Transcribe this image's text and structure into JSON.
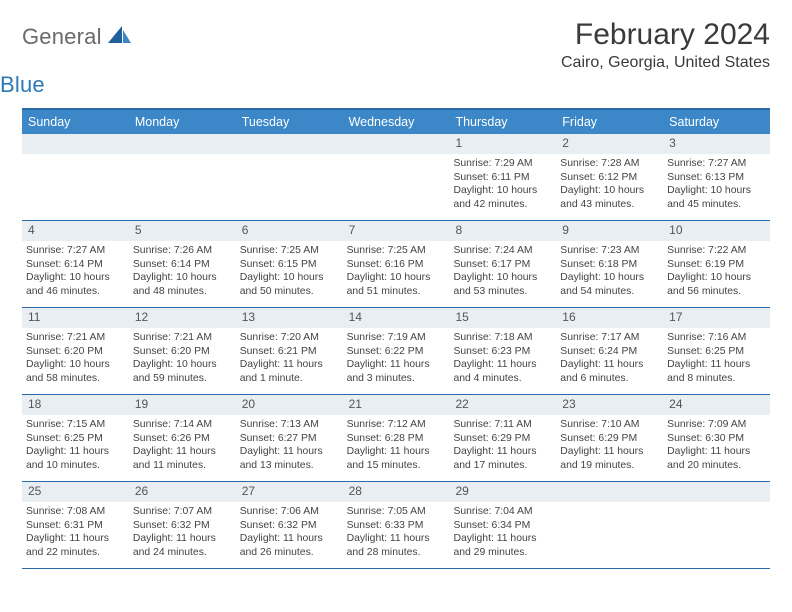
{
  "logo": {
    "word1": "General",
    "word2": "Blue"
  },
  "header": {
    "title": "February 2024",
    "subtitle": "Cairo, Georgia, United States"
  },
  "dayNames": [
    "Sunday",
    "Monday",
    "Tuesday",
    "Wednesday",
    "Thursday",
    "Friday",
    "Saturday"
  ],
  "colors": {
    "headerBar": "#3b87c8",
    "topBorder": "#2a6aa8",
    "dayNumBg": "#e9eef2",
    "text": "#444444",
    "titleText": "#3a3a3a",
    "logoGray": "#6a6a6a",
    "logoBlue": "#2a7ab8"
  },
  "fonts": {
    "title_pt": 30,
    "subtitle_pt": 16,
    "dayheader_pt": 12.5,
    "daynum_pt": 12,
    "body_pt": 10.4
  },
  "weeks": [
    [
      null,
      null,
      null,
      null,
      {
        "num": "1",
        "sunrise": "7:29 AM",
        "sunset": "6:11 PM",
        "daylight": "10 hours and 42 minutes."
      },
      {
        "num": "2",
        "sunrise": "7:28 AM",
        "sunset": "6:12 PM",
        "daylight": "10 hours and 43 minutes."
      },
      {
        "num": "3",
        "sunrise": "7:27 AM",
        "sunset": "6:13 PM",
        "daylight": "10 hours and 45 minutes."
      }
    ],
    [
      {
        "num": "4",
        "sunrise": "7:27 AM",
        "sunset": "6:14 PM",
        "daylight": "10 hours and 46 minutes."
      },
      {
        "num": "5",
        "sunrise": "7:26 AM",
        "sunset": "6:14 PM",
        "daylight": "10 hours and 48 minutes."
      },
      {
        "num": "6",
        "sunrise": "7:25 AM",
        "sunset": "6:15 PM",
        "daylight": "10 hours and 50 minutes."
      },
      {
        "num": "7",
        "sunrise": "7:25 AM",
        "sunset": "6:16 PM",
        "daylight": "10 hours and 51 minutes."
      },
      {
        "num": "8",
        "sunrise": "7:24 AM",
        "sunset": "6:17 PM",
        "daylight": "10 hours and 53 minutes."
      },
      {
        "num": "9",
        "sunrise": "7:23 AM",
        "sunset": "6:18 PM",
        "daylight": "10 hours and 54 minutes."
      },
      {
        "num": "10",
        "sunrise": "7:22 AM",
        "sunset": "6:19 PM",
        "daylight": "10 hours and 56 minutes."
      }
    ],
    [
      {
        "num": "11",
        "sunrise": "7:21 AM",
        "sunset": "6:20 PM",
        "daylight": "10 hours and 58 minutes."
      },
      {
        "num": "12",
        "sunrise": "7:21 AM",
        "sunset": "6:20 PM",
        "daylight": "10 hours and 59 minutes."
      },
      {
        "num": "13",
        "sunrise": "7:20 AM",
        "sunset": "6:21 PM",
        "daylight": "11 hours and 1 minute."
      },
      {
        "num": "14",
        "sunrise": "7:19 AM",
        "sunset": "6:22 PM",
        "daylight": "11 hours and 3 minutes."
      },
      {
        "num": "15",
        "sunrise": "7:18 AM",
        "sunset": "6:23 PM",
        "daylight": "11 hours and 4 minutes."
      },
      {
        "num": "16",
        "sunrise": "7:17 AM",
        "sunset": "6:24 PM",
        "daylight": "11 hours and 6 minutes."
      },
      {
        "num": "17",
        "sunrise": "7:16 AM",
        "sunset": "6:25 PM",
        "daylight": "11 hours and 8 minutes."
      }
    ],
    [
      {
        "num": "18",
        "sunrise": "7:15 AM",
        "sunset": "6:25 PM",
        "daylight": "11 hours and 10 minutes."
      },
      {
        "num": "19",
        "sunrise": "7:14 AM",
        "sunset": "6:26 PM",
        "daylight": "11 hours and 11 minutes."
      },
      {
        "num": "20",
        "sunrise": "7:13 AM",
        "sunset": "6:27 PM",
        "daylight": "11 hours and 13 minutes."
      },
      {
        "num": "21",
        "sunrise": "7:12 AM",
        "sunset": "6:28 PM",
        "daylight": "11 hours and 15 minutes."
      },
      {
        "num": "22",
        "sunrise": "7:11 AM",
        "sunset": "6:29 PM",
        "daylight": "11 hours and 17 minutes."
      },
      {
        "num": "23",
        "sunrise": "7:10 AM",
        "sunset": "6:29 PM",
        "daylight": "11 hours and 19 minutes."
      },
      {
        "num": "24",
        "sunrise": "7:09 AM",
        "sunset": "6:30 PM",
        "daylight": "11 hours and 20 minutes."
      }
    ],
    [
      {
        "num": "25",
        "sunrise": "7:08 AM",
        "sunset": "6:31 PM",
        "daylight": "11 hours and 22 minutes."
      },
      {
        "num": "26",
        "sunrise": "7:07 AM",
        "sunset": "6:32 PM",
        "daylight": "11 hours and 24 minutes."
      },
      {
        "num": "27",
        "sunrise": "7:06 AM",
        "sunset": "6:32 PM",
        "daylight": "11 hours and 26 minutes."
      },
      {
        "num": "28",
        "sunrise": "7:05 AM",
        "sunset": "6:33 PM",
        "daylight": "11 hours and 28 minutes."
      },
      {
        "num": "29",
        "sunrise": "7:04 AM",
        "sunset": "6:34 PM",
        "daylight": "11 hours and 29 minutes."
      },
      null,
      null
    ]
  ],
  "labels": {
    "sunrise": "Sunrise: ",
    "sunset": "Sunset: ",
    "daylight": "Daylight: "
  }
}
